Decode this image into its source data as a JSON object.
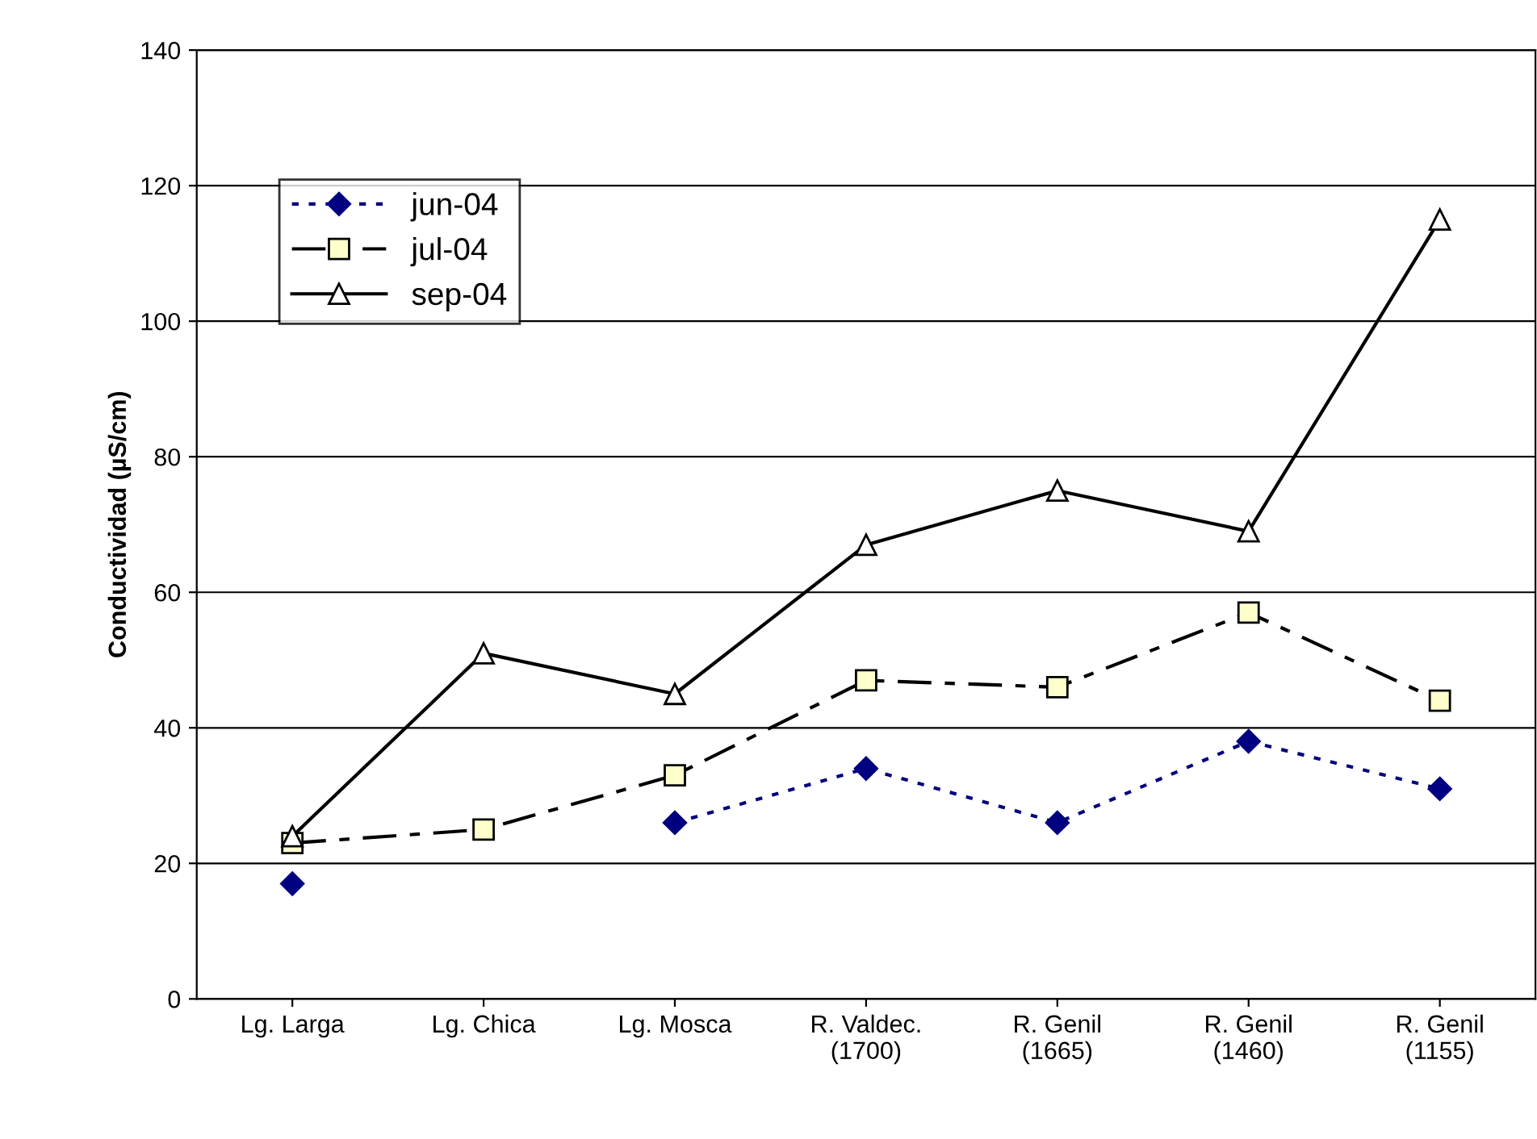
{
  "chart_data": {
    "type": "line",
    "ylabel": "Conductividad (µS/cm)",
    "categories": [
      "Lg. Larga",
      "Lg. Chica",
      "Lg. Mosca",
      "R. Valdec.\n(1700)",
      "R. Genil\n(1665)",
      "R. Genil\n(1460)",
      "R. Genil\n(1155)"
    ],
    "series": [
      {
        "name": "jun-04",
        "color": "#000080",
        "marker": "diamond",
        "line_style": "dotted",
        "values": [
          17,
          null,
          26,
          34,
          26,
          38,
          31
        ]
      },
      {
        "name": "jul-04",
        "color": "#000000",
        "marker": "square",
        "line_style": "dashdot",
        "values": [
          23,
          25,
          33,
          47,
          46,
          57,
          44
        ]
      },
      {
        "name": "sep-04",
        "color": "#000000",
        "marker": "triangle",
        "line_style": "solid",
        "values": [
          24,
          51,
          45,
          67,
          75,
          69,
          115
        ]
      }
    ],
    "ylim": [
      0,
      140
    ],
    "yticks": [
      0,
      20,
      40,
      60,
      80,
      100,
      120,
      140
    ],
    "grid": "y",
    "legend": "top left"
  }
}
